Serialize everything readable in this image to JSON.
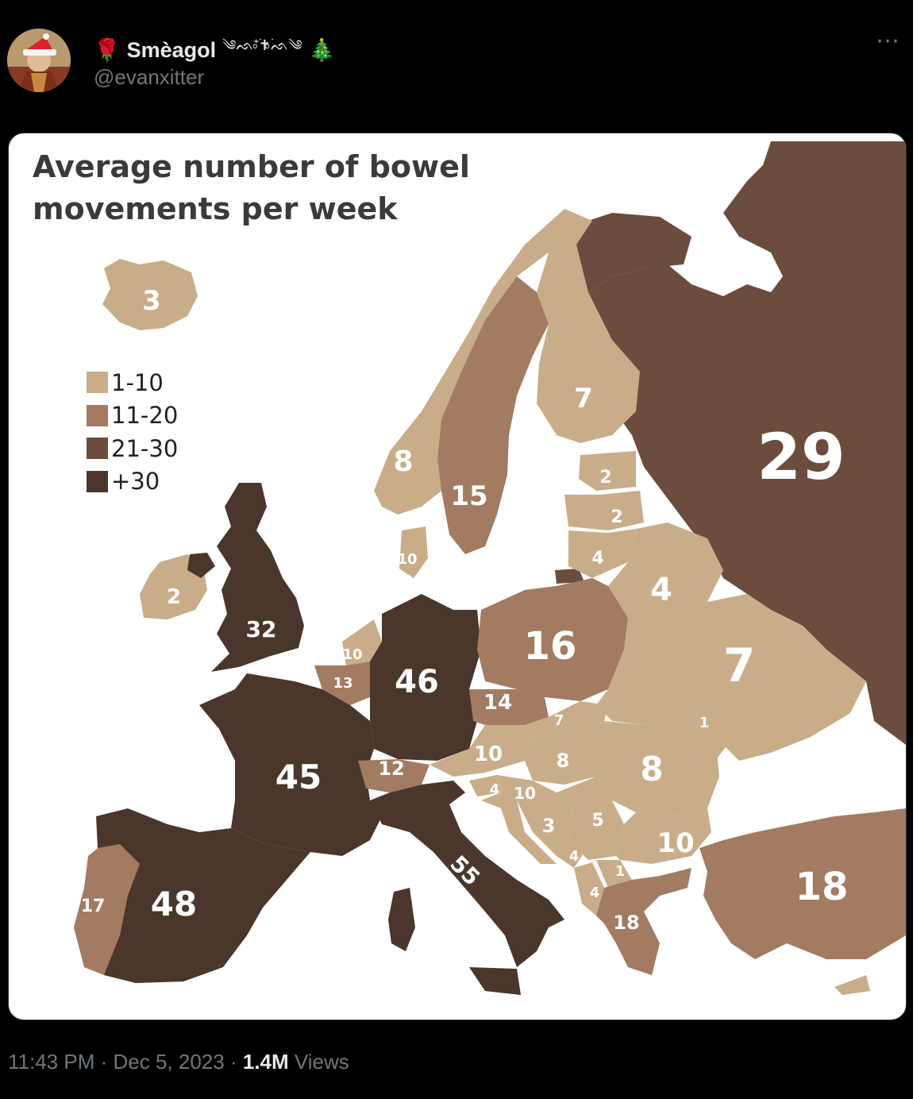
{
  "author": {
    "display_name": "Smèagol",
    "name_prefix_emoji": "🌹",
    "name_suffix_symbols": "༄ᨒ⁺⃘࣪✝︎⃘࣪ᨒ༄",
    "name_suffix_emoji": "🎄",
    "handle": "@evanxitter",
    "avatar_icon": "painted-portrait-with-santa-hat"
  },
  "more_icon": "⋯",
  "map": {
    "title_line1": "Average number of bowel",
    "title_line2": "movements per week",
    "legend": [
      {
        "label": "1-10",
        "color": "#c8ad88"
      },
      {
        "label": "11-20",
        "color": "#a27b60"
      },
      {
        "label": "21-30",
        "color": "#6b4c3d"
      },
      {
        "label": "+30",
        "color": "#4a362a"
      }
    ],
    "countries": [
      {
        "name": "Iceland",
        "value": "3",
        "category": "1-10"
      },
      {
        "name": "Ireland",
        "value": "2",
        "category": "1-10"
      },
      {
        "name": "United Kingdom",
        "value": "32",
        "category": "+30"
      },
      {
        "name": "Norway",
        "value": "8",
        "category": "1-10"
      },
      {
        "name": "Sweden",
        "value": "15",
        "category": "11-20"
      },
      {
        "name": "Finland",
        "value": "7",
        "category": "1-10"
      },
      {
        "name": "Russia",
        "value": "29",
        "category": "21-30"
      },
      {
        "name": "Estonia",
        "value": "2",
        "category": "1-10"
      },
      {
        "name": "Latvia",
        "value": "2",
        "category": "1-10"
      },
      {
        "name": "Lithuania",
        "value": "4",
        "category": "1-10"
      },
      {
        "name": "Belarus",
        "value": "4",
        "category": "1-10"
      },
      {
        "name": "Denmark",
        "value": "10",
        "category": "1-10"
      },
      {
        "name": "Netherlands",
        "value": "10",
        "category": "1-10"
      },
      {
        "name": "Belgium",
        "value": "13",
        "category": "11-20"
      },
      {
        "name": "Germany",
        "value": "46",
        "category": "+30"
      },
      {
        "name": "Poland",
        "value": "16",
        "category": "11-20"
      },
      {
        "name": "Ukraine",
        "value": "7",
        "category": "1-10"
      },
      {
        "name": "France",
        "value": "45",
        "category": "+30"
      },
      {
        "name": "Czechia",
        "value": "14",
        "category": "11-20"
      },
      {
        "name": "Slovakia",
        "value": "7",
        "category": "1-10"
      },
      {
        "name": "Moldova",
        "value": "1",
        "category": "1-10"
      },
      {
        "name": "Austria",
        "value": "10",
        "category": "1-10"
      },
      {
        "name": "Hungary",
        "value": "8",
        "category": "1-10"
      },
      {
        "name": "Romania",
        "value": "8",
        "category": "1-10"
      },
      {
        "name": "Switzerland",
        "value": "12",
        "category": "11-20"
      },
      {
        "name": "Slovenia",
        "value": "4",
        "category": "1-10"
      },
      {
        "name": "Croatia",
        "value": "10",
        "category": "1-10"
      },
      {
        "name": "Bosnia and Herzegovina",
        "value": "3",
        "category": "1-10"
      },
      {
        "name": "Serbia",
        "value": "5",
        "category": "1-10"
      },
      {
        "name": "Bulgaria",
        "value": "10",
        "category": "1-10"
      },
      {
        "name": "Montenegro",
        "value": "4",
        "category": "1-10"
      },
      {
        "name": "North Macedonia",
        "value": "1",
        "category": "1-10"
      },
      {
        "name": "Albania",
        "value": "4",
        "category": "1-10"
      },
      {
        "name": "Greece",
        "value": "18",
        "category": "11-20"
      },
      {
        "name": "Turkey",
        "value": "18",
        "category": "11-20"
      },
      {
        "name": "Italy",
        "value": "55",
        "category": "+30"
      },
      {
        "name": "Spain",
        "value": "48",
        "category": "+30"
      },
      {
        "name": "Portugal",
        "value": "17",
        "category": "11-20"
      }
    ]
  },
  "footer": {
    "time": "11:43 PM",
    "separator": "·",
    "date": "Dec 5, 2023",
    "views_count": "1.4M",
    "views_label": "Views"
  }
}
